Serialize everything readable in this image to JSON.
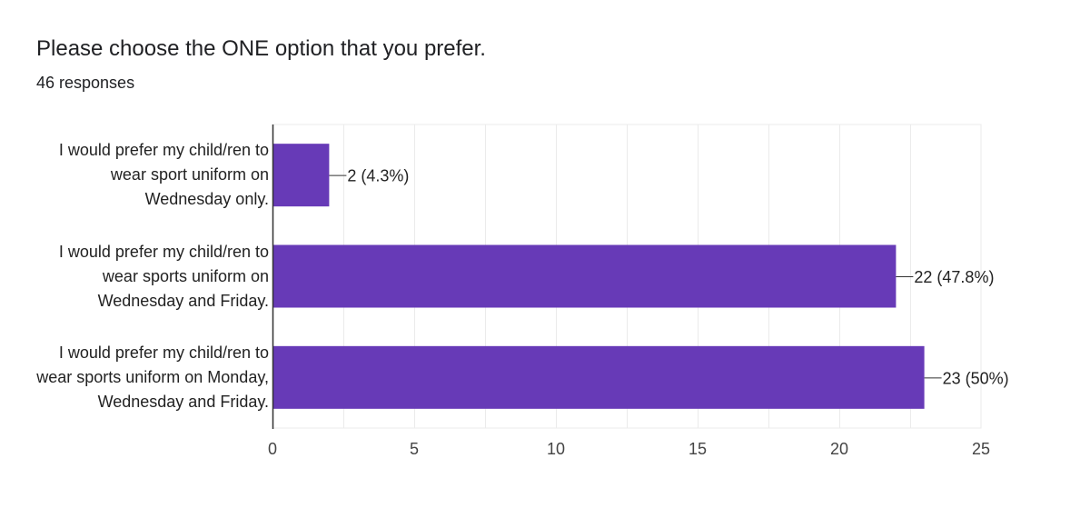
{
  "header": {
    "title": "Please choose the ONE option that you prefer.",
    "responses": "46 responses"
  },
  "colors": {
    "bar": "#673ab7",
    "grid": "#ebebeb",
    "axis": "#333333"
  },
  "chart_data": {
    "type": "bar",
    "orientation": "horizontal",
    "categories": [
      [
        "I would prefer my child/ren to",
        "wear sport uniform on",
        "Wednesday only."
      ],
      [
        "I would prefer my child/ren to",
        "wear sports uniform on",
        "Wednesday and Friday."
      ],
      [
        "I would prefer my child/ren to",
        "wear sports uniform on Monday,",
        "Wednesday and Friday."
      ]
    ],
    "values": [
      2,
      22,
      23
    ],
    "data_labels": [
      "2 (4.3%)",
      "22 (47.8%)",
      "23 (50%)"
    ],
    "xlim": [
      0,
      25
    ],
    "xticks": [
      0,
      5,
      10,
      15,
      20,
      25
    ],
    "grid": true,
    "legend": "none"
  }
}
